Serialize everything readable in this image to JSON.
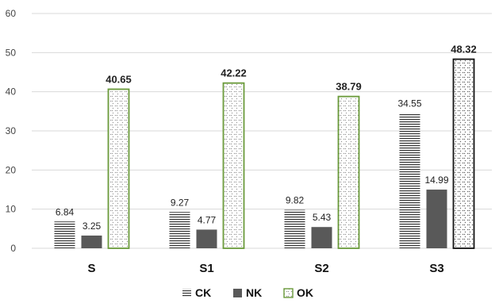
{
  "chart_data": {
    "type": "bar",
    "categories": [
      "S",
      "S1",
      "S2",
      "S3"
    ],
    "series": [
      {
        "name": "CK",
        "values": [
          6.84,
          9.27,
          9.82,
          34.55
        ],
        "labels": [
          "6.84",
          "9.27",
          "9.82",
          "34.55"
        ],
        "pattern": "hlines",
        "color": "#333333"
      },
      {
        "name": "NK",
        "values": [
          3.25,
          4.77,
          5.43,
          14.99
        ],
        "labels": [
          "3.25",
          "4.77",
          "5.43",
          "14.99"
        ],
        "pattern": "solid",
        "color": "#595959"
      },
      {
        "name": "OK",
        "values": [
          40.65,
          42.22,
          38.79,
          48.32
        ],
        "labels": [
          "40.65",
          "42.22",
          "38.79",
          "48.32"
        ],
        "pattern": "dots",
        "color": "#6a9a3a"
      }
    ],
    "ylim": [
      0,
      60
    ],
    "yticks": [
      "0",
      "10",
      "20",
      "30",
      "40",
      "50",
      "60"
    ],
    "grid": true,
    "legend_position": "bottom",
    "title": "",
    "xlabel": "",
    "ylabel": ""
  }
}
